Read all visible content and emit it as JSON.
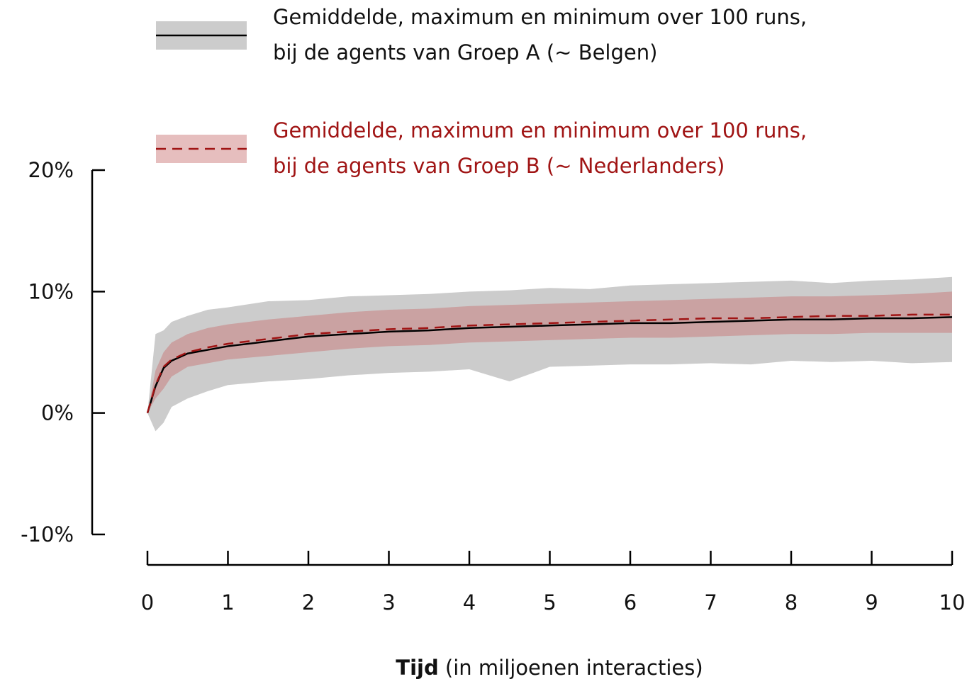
{
  "chart_data": {
    "type": "line",
    "xlabel": {
      "bold": "Tijd",
      "rest": "(in miljoenen interacties)"
    },
    "x": [
      0,
      0.1,
      0.2,
      0.3,
      0.5,
      0.75,
      1,
      1.5,
      2,
      2.5,
      3,
      3.5,
      4,
      4.5,
      5,
      5.5,
      6,
      6.5,
      7,
      7.5,
      8,
      8.5,
      9,
      9.5,
      10
    ],
    "series": [
      {
        "name": [
          "Gemiddelde, maximum en minimum over 100 runs,",
          "bij de agents van Groep A (~ Belgen)"
        ],
        "color": "#000000",
        "band_color": "#cccccc",
        "dash": false,
        "values": [
          0,
          2.2,
          3.7,
          4.3,
          4.9,
          5.2,
          5.5,
          5.9,
          6.3,
          6.5,
          6.7,
          6.8,
          7.0,
          7.1,
          7.2,
          7.3,
          7.4,
          7.4,
          7.5,
          7.6,
          7.7,
          7.7,
          7.8,
          7.8,
          7.9
        ],
        "max": [
          0,
          6.5,
          6.8,
          7.5,
          8.0,
          8.5,
          8.7,
          9.2,
          9.3,
          9.6,
          9.7,
          9.8,
          10.0,
          10.1,
          10.3,
          10.2,
          10.5,
          10.6,
          10.7,
          10.8,
          10.9,
          10.7,
          10.9,
          11.0,
          11.2
        ],
        "min": [
          0,
          -1.5,
          -0.8,
          0.5,
          1.2,
          1.8,
          2.3,
          2.6,
          2.8,
          3.1,
          3.3,
          3.4,
          3.6,
          2.6,
          3.8,
          3.9,
          4.0,
          4.0,
          4.1,
          4.0,
          4.3,
          4.2,
          4.3,
          4.1,
          4.2
        ]
      },
      {
        "name": [
          "Gemiddelde, maximum en minimum over 100 runs,",
          "bij de agents van Groep B (~ Nederlanders)"
        ],
        "color": "#a01414",
        "band_color": "rgba(200,110,110,0.45)",
        "dash": true,
        "values": [
          0,
          2.3,
          3.8,
          4.4,
          5.0,
          5.4,
          5.7,
          6.1,
          6.5,
          6.7,
          6.9,
          7.0,
          7.2,
          7.3,
          7.4,
          7.5,
          7.6,
          7.7,
          7.8,
          7.8,
          7.9,
          8.0,
          8.0,
          8.1,
          8.1
        ],
        "max": [
          0,
          3.5,
          5.0,
          5.8,
          6.5,
          7.0,
          7.3,
          7.7,
          8.0,
          8.3,
          8.5,
          8.6,
          8.8,
          8.9,
          9.0,
          9.1,
          9.2,
          9.3,
          9.4,
          9.5,
          9.6,
          9.6,
          9.7,
          9.8,
          10.0
        ],
        "min": [
          0,
          1.2,
          2.0,
          3.0,
          3.8,
          4.1,
          4.4,
          4.7,
          5.0,
          5.3,
          5.5,
          5.6,
          5.8,
          5.9,
          6.0,
          6.1,
          6.2,
          6.2,
          6.3,
          6.4,
          6.5,
          6.5,
          6.6,
          6.6,
          6.6
        ]
      }
    ],
    "xlim": [
      0,
      10
    ],
    "xticks": [
      0,
      1,
      2,
      3,
      4,
      5,
      6,
      7,
      8,
      9,
      10
    ],
    "ylim": [
      -10,
      20
    ],
    "yticks": [
      {
        "value": -10,
        "label": "-10%"
      },
      {
        "value": 0,
        "label": "0%"
      },
      {
        "value": 10,
        "label": "10%"
      },
      {
        "value": 20,
        "label": "20%"
      }
    ]
  }
}
